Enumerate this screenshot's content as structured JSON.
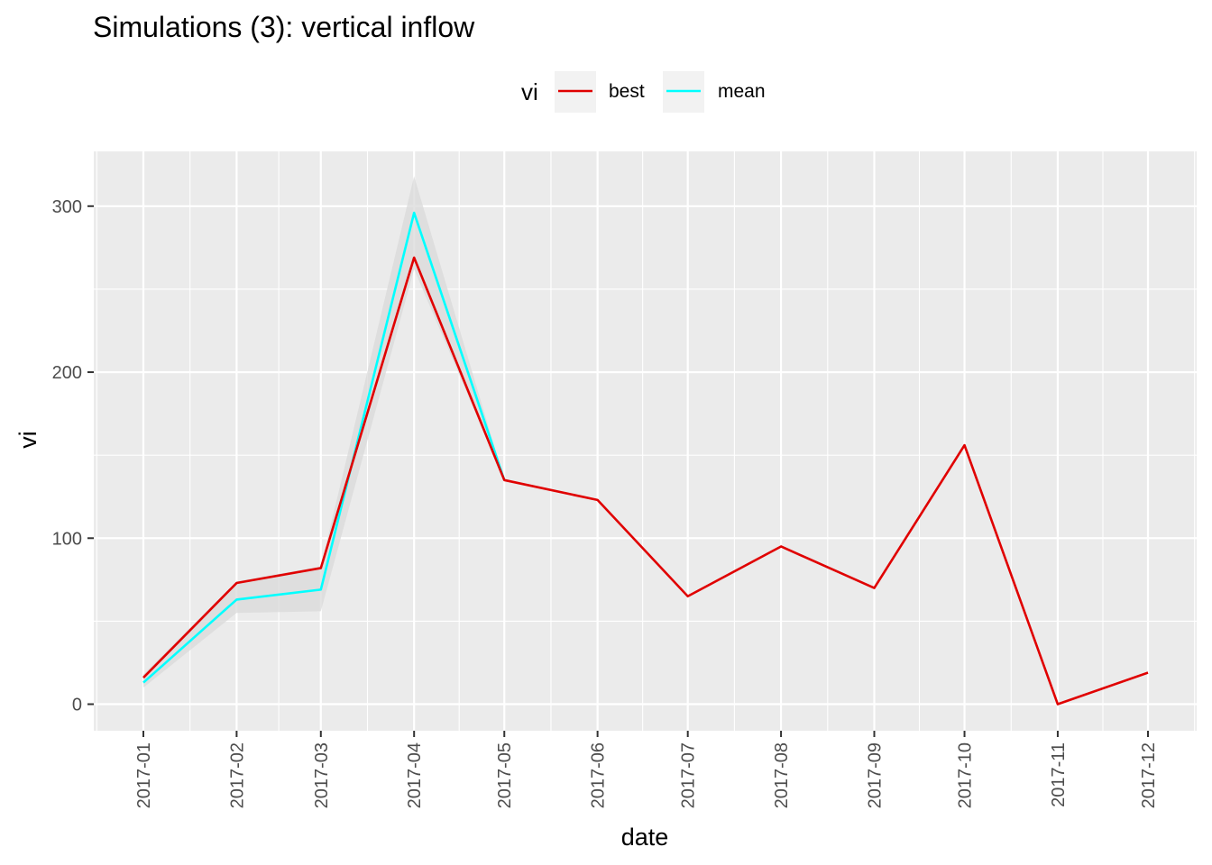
{
  "chart_data": {
    "type": "line",
    "title": "Simulations (3): vertical inflow",
    "xlabel": "date",
    "ylabel": "vi",
    "x": [
      "2017-01",
      "2017-02",
      "2017-03",
      "2017-04",
      "2017-05",
      "2017-06",
      "2017-07",
      "2017-08",
      "2017-09",
      "2017-10",
      "2017-11",
      "2017-12"
    ],
    "x_days": [
      0,
      31,
      59,
      90,
      120,
      151,
      181,
      212,
      243,
      273,
      304,
      334
    ],
    "ylim": [
      -16,
      333
    ],
    "yticks": [
      0,
      100,
      200,
      300
    ],
    "grid": true,
    "legend": {
      "title": "vi",
      "position": "top",
      "entries": [
        {
          "label": "best",
          "color": "#e00000"
        },
        {
          "label": "mean",
          "color": "#00ffff"
        }
      ]
    },
    "series": [
      {
        "name": "best",
        "color": "#e00000",
        "values": [
          16,
          73,
          82,
          269,
          135,
          123,
          65,
          95,
          70,
          156,
          0,
          19
        ]
      },
      {
        "name": "mean",
        "color": "#00ffff",
        "values": [
          13,
          63,
          69,
          296,
          135,
          null,
          null,
          null,
          null,
          null,
          null,
          null
        ]
      }
    ],
    "ribbon": {
      "color": "#d9d9d9",
      "lower": [
        10,
        55,
        56,
        262,
        135,
        null,
        null,
        null,
        null,
        null,
        null,
        null
      ],
      "upper": [
        18,
        74,
        83,
        318,
        135,
        null,
        null,
        null,
        null,
        null,
        null,
        null
      ]
    }
  }
}
